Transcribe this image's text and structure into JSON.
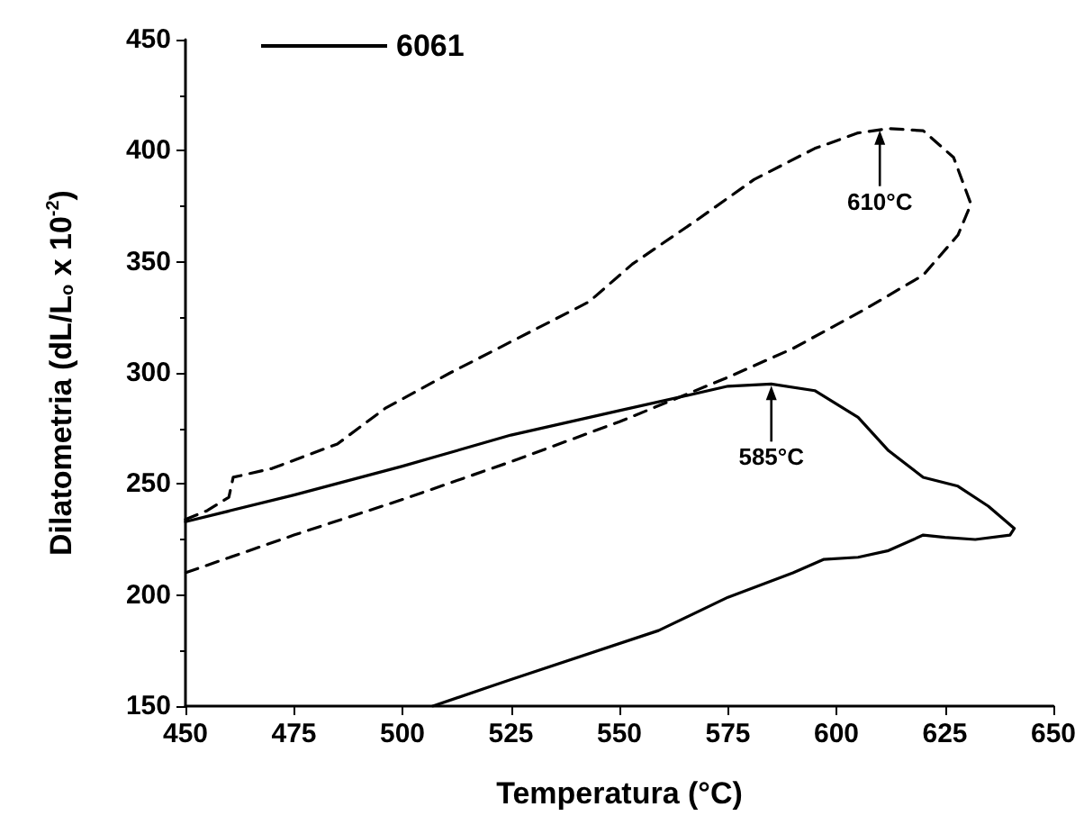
{
  "chart_data": {
    "type": "line",
    "xlabel": "Temperatura (°C)",
    "ylabel": "Dilatometria (dL/L$_{o}$ x 10$^{-2}$)",
    "xlim": [
      450,
      650
    ],
    "xticks": [
      450,
      475,
      500,
      525,
      550,
      575,
      600,
      625,
      650
    ],
    "ylim": [
      150,
      450
    ],
    "yticks": [
      150,
      200,
      250,
      300,
      350,
      400,
      450
    ],
    "grid": false,
    "legend": "top left",
    "marker": "none",
    "series": [
      {
        "color": "#000000",
        "line_style": "dashed",
        "x": [
          450,
          455,
          460,
          461,
          470,
          485,
          496,
          511,
          525,
          543,
          553,
          568,
          581,
          595,
          605,
          612,
          620,
          627,
          631,
          628,
          620,
          606,
          590,
          575,
          560,
          550,
          525,
          500,
          475,
          450
        ],
        "values": [
          234,
          238,
          244,
          253,
          257,
          268,
          284,
          300,
          314,
          332,
          349,
          369,
          387,
          401,
          408,
          410,
          409,
          397,
          376,
          362,
          344,
          328,
          311,
          298,
          286,
          278,
          260,
          243,
          227,
          210
        ]
      },
      {
        "name": "6061",
        "color": "#000000",
        "line_style": "solid",
        "x": [
          450,
          475,
          500,
          525,
          550,
          575,
          585,
          595,
          605,
          612,
          620,
          628,
          635,
          641,
          640,
          632,
          625,
          620,
          612,
          605,
          597,
          590,
          575,
          559,
          525,
          507
        ],
        "values": [
          233,
          245,
          258,
          272,
          283,
          294,
          295,
          292,
          280,
          265,
          253,
          249,
          240,
          230,
          227,
          225,
          226,
          227,
          220,
          217,
          216,
          210,
          199,
          184,
          162,
          150
        ]
      }
    ],
    "annotations": [
      {
        "text": "610°C",
        "x": 610,
        "y": 410
      },
      {
        "text": "585°C",
        "x": 585,
        "y": 295
      }
    ]
  }
}
